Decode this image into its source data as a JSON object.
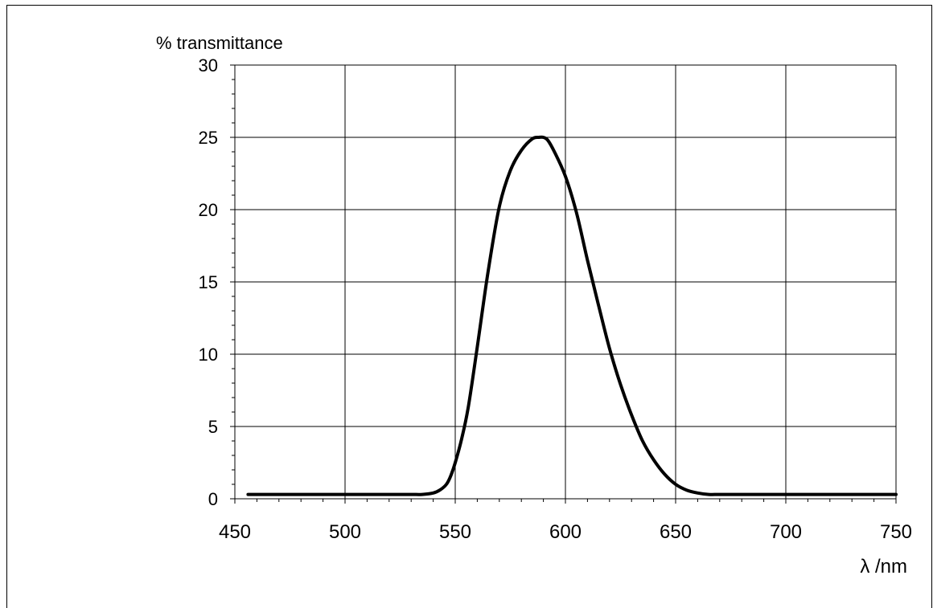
{
  "chart_data": {
    "type": "line",
    "title": "",
    "ylabel": "% transmittance",
    "xlabel": "λ /nm",
    "xlim": [
      450,
      750
    ],
    "ylim": [
      0,
      30
    ],
    "x_ticks": [
      450,
      500,
      550,
      600,
      650,
      700,
      750
    ],
    "y_ticks": [
      0,
      5,
      10,
      15,
      20,
      25,
      30
    ],
    "x_minor_step": 10,
    "y_minor_step": 1,
    "grid": true,
    "legend": "none",
    "line_color": "#000000",
    "series": [
      {
        "x": [
          456,
          470,
          480,
          490,
          500,
          510,
          520,
          530,
          535,
          540,
          543,
          546,
          548,
          550,
          553,
          556,
          560,
          565,
          570,
          575,
          580,
          585,
          588,
          590,
          592,
          595,
          600,
          605,
          610,
          615,
          620,
          625,
          630,
          635,
          640,
          645,
          650,
          655,
          660,
          665,
          670,
          680,
          700,
          720,
          750
        ],
        "y": [
          0.3,
          0.3,
          0.3,
          0.3,
          0.3,
          0.3,
          0.3,
          0.3,
          0.3,
          0.4,
          0.6,
          1.0,
          1.6,
          2.5,
          4.2,
          6.4,
          10.5,
          15.8,
          20.2,
          22.7,
          24.1,
          24.9,
          25.0,
          25.0,
          24.8,
          24.0,
          22.3,
          19.8,
          16.5,
          13.4,
          10.4,
          7.9,
          5.8,
          4.0,
          2.7,
          1.7,
          1.0,
          0.6,
          0.4,
          0.3,
          0.3,
          0.3,
          0.3,
          0.3,
          0.3
        ]
      }
    ]
  }
}
